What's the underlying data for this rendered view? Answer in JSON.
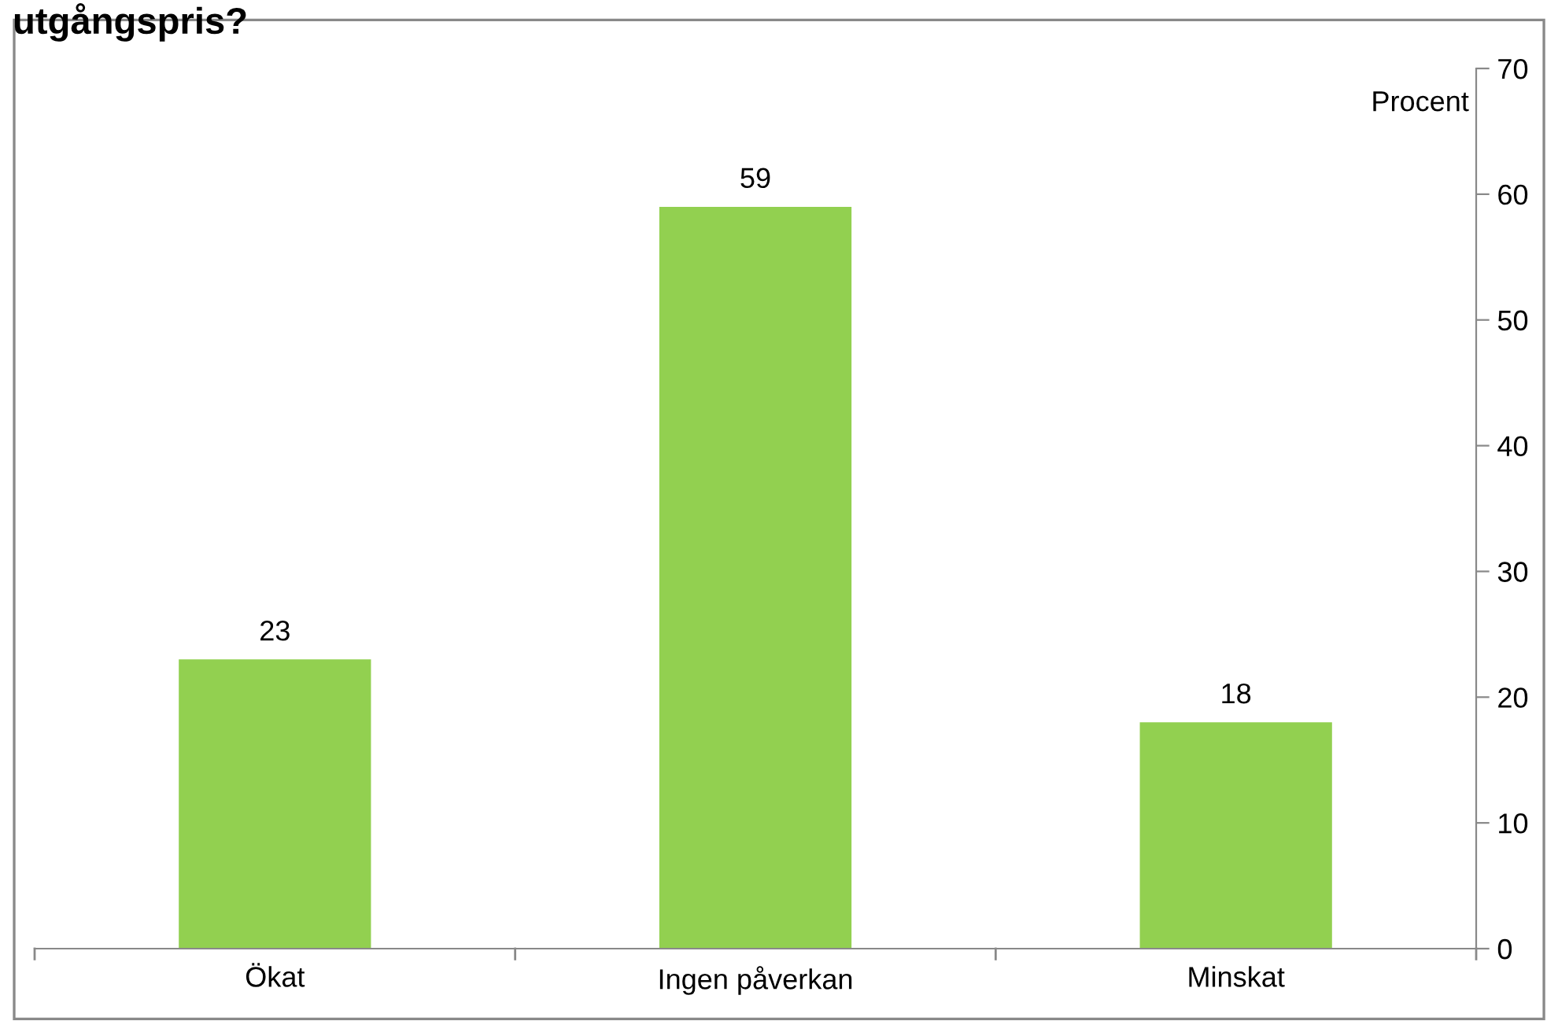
{
  "chart_data": {
    "type": "bar",
    "title": "utgångspris?",
    "ylabel": "Procent",
    "categories": [
      "Ökat",
      "Ingen påverkan",
      "Minskat"
    ],
    "values": [
      23,
      59,
      18
    ],
    "color": "#92d050",
    "ylim": [
      0,
      70
    ],
    "yticks": [
      0,
      10,
      20,
      30,
      40,
      50,
      60,
      70
    ],
    "data_labels": true,
    "grid": false,
    "legend": false
  }
}
